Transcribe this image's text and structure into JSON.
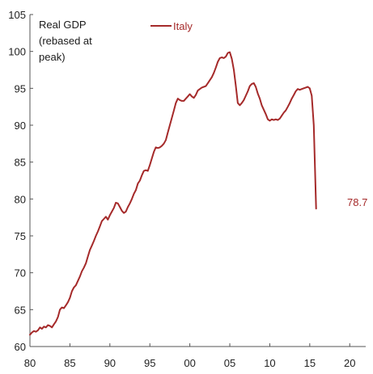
{
  "chart_data": {
    "type": "line",
    "ylabel": [
      "Real GDP",
      "(rebased at",
      "peak)"
    ],
    "xlim": [
      1980,
      2022
    ],
    "ylim": [
      60,
      105
    ],
    "x_ticks": [
      1980,
      1985,
      1990,
      1995,
      2000,
      2005,
      2010,
      2015,
      2020
    ],
    "x_tick_labels": [
      "80",
      "85",
      "90",
      "95",
      "00",
      "05",
      "10",
      "15",
      "20"
    ],
    "y_ticks": [
      60,
      65,
      70,
      75,
      80,
      85,
      90,
      95,
      100,
      105
    ],
    "y_tick_labels": [
      "60",
      "65",
      "70",
      "75",
      "80",
      "85",
      "90",
      "95",
      "100",
      "105"
    ],
    "grid": false,
    "legend_position": "top-center",
    "series": [
      {
        "name": "Italy",
        "color": "#a52a2a",
        "end_label": "78.7",
        "points": [
          [
            1980.0,
            61.6
          ],
          [
            1980.25,
            61.9
          ],
          [
            1980.5,
            62.1
          ],
          [
            1980.75,
            62.0
          ],
          [
            1981.0,
            62.2
          ],
          [
            1981.25,
            62.6
          ],
          [
            1981.5,
            62.4
          ],
          [
            1981.75,
            62.7
          ],
          [
            1982.0,
            62.6
          ],
          [
            1982.25,
            62.9
          ],
          [
            1982.5,
            62.8
          ],
          [
            1982.75,
            62.6
          ],
          [
            1983.0,
            63.0
          ],
          [
            1983.25,
            63.4
          ],
          [
            1983.5,
            64.0
          ],
          [
            1983.75,
            65.0
          ],
          [
            1984.0,
            65.3
          ],
          [
            1984.25,
            65.2
          ],
          [
            1984.5,
            65.6
          ],
          [
            1984.75,
            66.0
          ],
          [
            1985.0,
            66.6
          ],
          [
            1985.25,
            67.5
          ],
          [
            1985.5,
            68.0
          ],
          [
            1985.75,
            68.3
          ],
          [
            1986.0,
            68.9
          ],
          [
            1986.25,
            69.5
          ],
          [
            1986.5,
            70.2
          ],
          [
            1986.75,
            70.7
          ],
          [
            1987.0,
            71.3
          ],
          [
            1987.25,
            72.2
          ],
          [
            1987.5,
            73.1
          ],
          [
            1987.75,
            73.7
          ],
          [
            1988.0,
            74.3
          ],
          [
            1988.25,
            75.0
          ],
          [
            1988.5,
            75.6
          ],
          [
            1988.75,
            76.3
          ],
          [
            1989.0,
            77.0
          ],
          [
            1989.25,
            77.3
          ],
          [
            1989.5,
            77.6
          ],
          [
            1989.75,
            77.2
          ],
          [
            1990.0,
            77.8
          ],
          [
            1990.25,
            78.3
          ],
          [
            1990.5,
            78.8
          ],
          [
            1990.75,
            79.5
          ],
          [
            1991.0,
            79.4
          ],
          [
            1991.25,
            78.9
          ],
          [
            1991.5,
            78.4
          ],
          [
            1991.75,
            78.1
          ],
          [
            1992.0,
            78.3
          ],
          [
            1992.25,
            78.9
          ],
          [
            1992.5,
            79.4
          ],
          [
            1992.75,
            80.0
          ],
          [
            1993.0,
            80.7
          ],
          [
            1993.25,
            81.2
          ],
          [
            1993.5,
            82.1
          ],
          [
            1993.75,
            82.5
          ],
          [
            1994.0,
            83.2
          ],
          [
            1994.25,
            83.8
          ],
          [
            1994.5,
            83.9
          ],
          [
            1994.75,
            83.8
          ],
          [
            1995.0,
            84.6
          ],
          [
            1995.25,
            85.5
          ],
          [
            1995.5,
            86.4
          ],
          [
            1995.75,
            87.0
          ],
          [
            1996.0,
            86.9
          ],
          [
            1996.25,
            87.0
          ],
          [
            1996.5,
            87.2
          ],
          [
            1996.75,
            87.5
          ],
          [
            1997.0,
            88.0
          ],
          [
            1997.25,
            89.0
          ],
          [
            1997.5,
            90.0
          ],
          [
            1997.75,
            91.0
          ],
          [
            1998.0,
            92.0
          ],
          [
            1998.25,
            93.0
          ],
          [
            1998.5,
            93.6
          ],
          [
            1998.75,
            93.4
          ],
          [
            1999.0,
            93.3
          ],
          [
            1999.25,
            93.3
          ],
          [
            1999.5,
            93.6
          ],
          [
            1999.75,
            93.9
          ],
          [
            2000.0,
            94.2
          ],
          [
            2000.25,
            93.9
          ],
          [
            2000.5,
            93.7
          ],
          [
            2000.75,
            94.1
          ],
          [
            2001.0,
            94.7
          ],
          [
            2001.25,
            94.9
          ],
          [
            2001.5,
            95.1
          ],
          [
            2001.75,
            95.2
          ],
          [
            2002.0,
            95.3
          ],
          [
            2002.25,
            95.7
          ],
          [
            2002.5,
            96.1
          ],
          [
            2002.75,
            96.5
          ],
          [
            2003.0,
            97.1
          ],
          [
            2003.25,
            97.8
          ],
          [
            2003.5,
            98.6
          ],
          [
            2003.75,
            99.1
          ],
          [
            2004.0,
            99.2
          ],
          [
            2004.25,
            99.1
          ],
          [
            2004.5,
            99.3
          ],
          [
            2004.75,
            99.8
          ],
          [
            2005.0,
            99.9
          ],
          [
            2005.25,
            99.0
          ],
          [
            2005.5,
            97.5
          ],
          [
            2005.75,
            95.4
          ],
          [
            2006.0,
            93.0
          ],
          [
            2006.25,
            92.7
          ],
          [
            2006.5,
            93.0
          ],
          [
            2006.75,
            93.4
          ],
          [
            2007.0,
            94.0
          ],
          [
            2007.25,
            94.6
          ],
          [
            2007.5,
            95.3
          ],
          [
            2007.75,
            95.6
          ],
          [
            2008.0,
            95.7
          ],
          [
            2008.25,
            95.2
          ],
          [
            2008.5,
            94.3
          ],
          [
            2008.75,
            93.6
          ],
          [
            2009.0,
            92.7
          ],
          [
            2009.25,
            92.1
          ],
          [
            2009.5,
            91.5
          ],
          [
            2009.75,
            90.8
          ],
          [
            2010.0,
            90.6
          ],
          [
            2010.25,
            90.8
          ],
          [
            2010.5,
            90.7
          ],
          [
            2010.75,
            90.8
          ],
          [
            2011.0,
            90.7
          ],
          [
            2011.25,
            90.9
          ],
          [
            2011.5,
            91.3
          ],
          [
            2011.75,
            91.7
          ],
          [
            2012.0,
            92.0
          ],
          [
            2012.25,
            92.5
          ],
          [
            2012.5,
            93.0
          ],
          [
            2012.75,
            93.6
          ],
          [
            2013.0,
            94.1
          ],
          [
            2013.25,
            94.6
          ],
          [
            2013.5,
            94.9
          ],
          [
            2013.75,
            94.8
          ],
          [
            2014.0,
            94.9
          ],
          [
            2014.25,
            95.0
          ],
          [
            2014.5,
            95.1
          ],
          [
            2014.75,
            95.2
          ],
          [
            2015.0,
            95.0
          ],
          [
            2015.25,
            94.0
          ],
          [
            2015.5,
            90.0
          ],
          [
            2015.8,
            78.7
          ]
        ]
      }
    ]
  }
}
